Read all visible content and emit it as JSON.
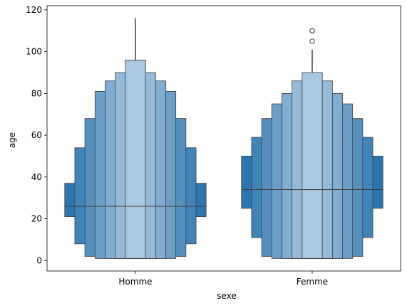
{
  "chart_data": {
    "type": "boxenplot",
    "xlabel": "sexe",
    "ylabel": "age",
    "ylim": [
      -5,
      122
    ],
    "yticks": [
      0,
      20,
      40,
      60,
      80,
      100,
      120
    ],
    "categories": [
      "Homme",
      "Femme"
    ],
    "color": "#2b76b0",
    "line_color": "#3c3c3c",
    "groups": [
      {
        "category": "Homme",
        "median": 26,
        "boxes": [
          {
            "low": 21,
            "high": 37
          },
          {
            "low": 8,
            "high": 54
          },
          {
            "low": 2,
            "high": 68
          },
          {
            "low": 1,
            "high": 81
          },
          {
            "low": 1,
            "high": 86
          },
          {
            "low": 1,
            "high": 90
          },
          {
            "low": 1,
            "high": 96
          }
        ],
        "whisker_max": 116,
        "outliers": []
      },
      {
        "category": "Femme",
        "median": 34,
        "boxes": [
          {
            "low": 25,
            "high": 50
          },
          {
            "low": 11,
            "high": 59
          },
          {
            "low": 2,
            "high": 68
          },
          {
            "low": 1,
            "high": 75
          },
          {
            "low": 1,
            "high": 80
          },
          {
            "low": 1,
            "high": 86
          },
          {
            "low": 1,
            "high": 90
          }
        ],
        "whisker_max": 101,
        "outliers": [
          105,
          110,
          110
        ]
      }
    ]
  }
}
